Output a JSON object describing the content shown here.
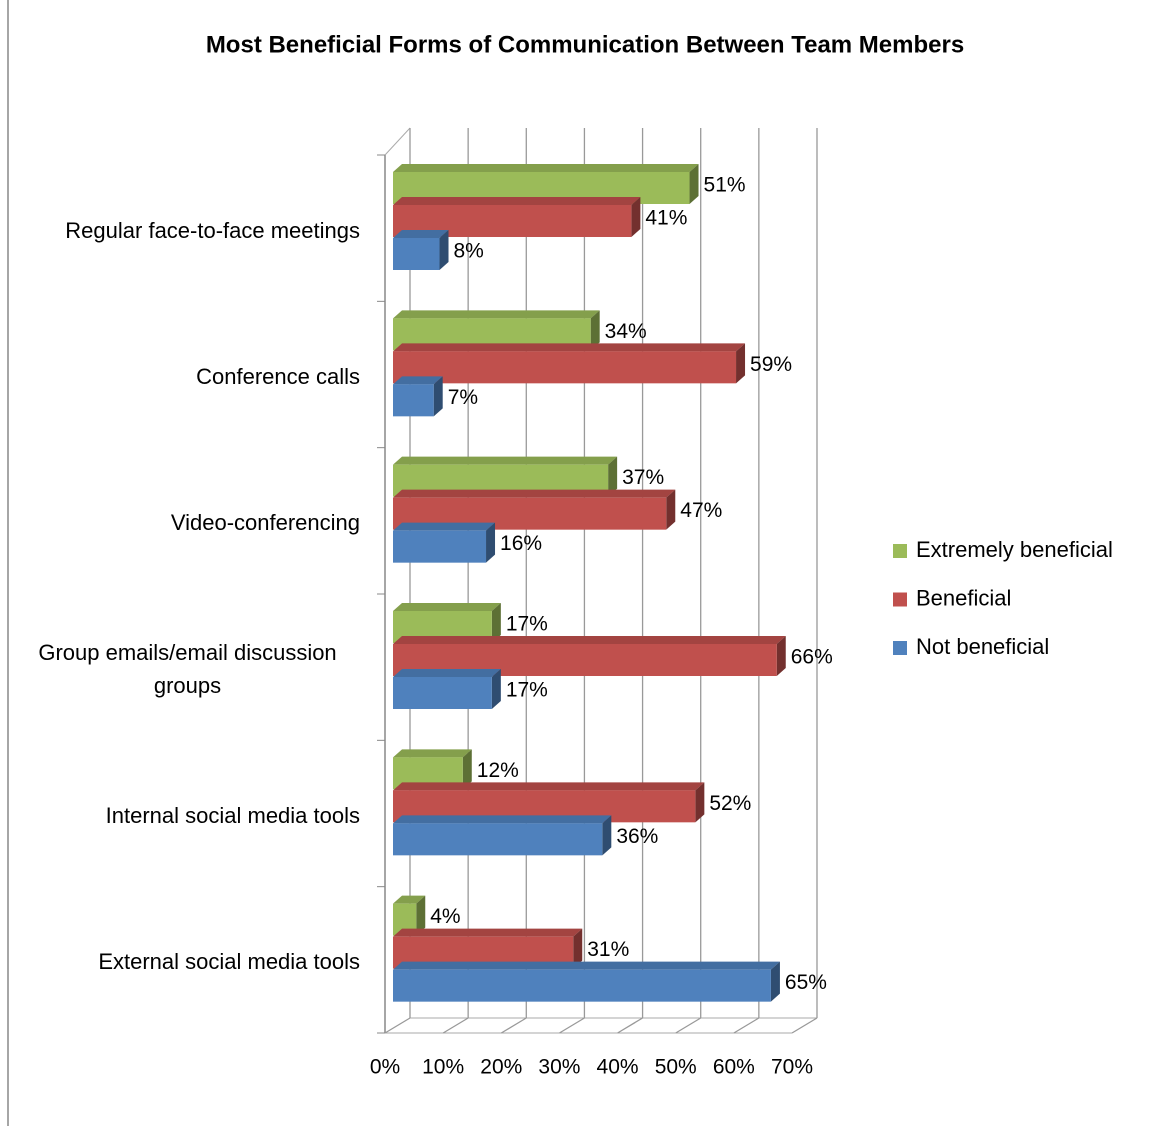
{
  "chart_data": {
    "type": "bar",
    "orientation": "horizontal",
    "title": "Most Beneficial Forms of Communication Between Team Members",
    "categories": [
      "Regular face-to-face meetings",
      "Conference calls",
      "Video-conferencing",
      "Group emails/email discussion groups",
      "Internal social media tools",
      "External social media tools"
    ],
    "series": [
      {
        "name": "Extremely beneficial",
        "color": "#9bbb59",
        "values": [
          51,
          34,
          37,
          17,
          12,
          4
        ],
        "value_labels": [
          "51%",
          "34%",
          "37%",
          "17%",
          "12%",
          "4%"
        ]
      },
      {
        "name": "Beneficial",
        "color": "#c0504d",
        "values": [
          41,
          59,
          47,
          66,
          52,
          31
        ],
        "value_labels": [
          "41%",
          "59%",
          "47%",
          "66%",
          "52%",
          "31%"
        ]
      },
      {
        "name": "Not beneficial",
        "color": "#4f81bd",
        "values": [
          8,
          7,
          16,
          17,
          36,
          65
        ],
        "value_labels": [
          "8%",
          "7%",
          "16%",
          "17%",
          "36%",
          "65%"
        ]
      }
    ],
    "xlim": [
      0,
      70
    ],
    "xticks": [
      {
        "value": 0,
        "label": "0%"
      },
      {
        "value": 10,
        "label": "10%"
      },
      {
        "value": 20,
        "label": "20%"
      },
      {
        "value": 30,
        "label": "30%"
      },
      {
        "value": 40,
        "label": "40%"
      },
      {
        "value": 50,
        "label": "50%"
      },
      {
        "value": 60,
        "label": "60%"
      },
      {
        "value": 70,
        "label": "70%"
      }
    ],
    "grid": true,
    "legend": "right"
  }
}
